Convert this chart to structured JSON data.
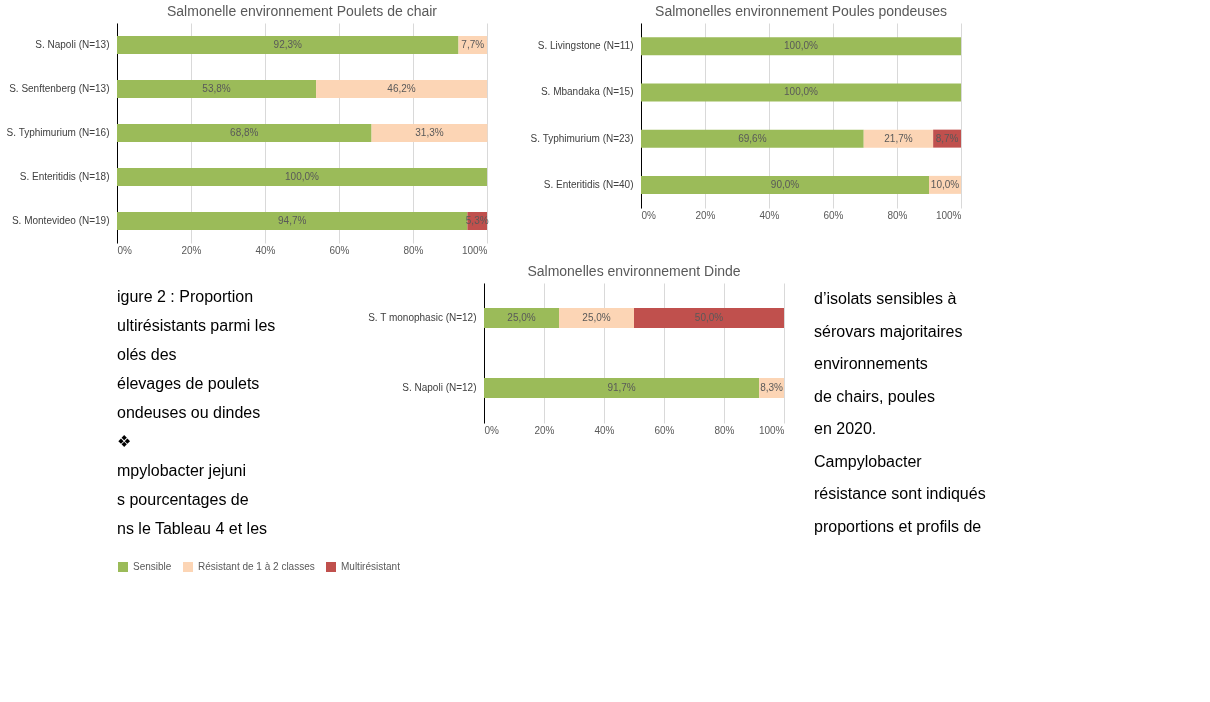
{
  "chart_data": [
    {
      "type": "bar",
      "orientation": "horizontal",
      "stacked": true,
      "title": "Salmonelle environnement Poulets de chair",
      "categories": [
        "S. Napoli (N=13)",
        "S. Senftenberg (N=13)",
        "S. Typhimurium (N=16)",
        "S. Enteritidis (N=18)",
        "S. Montevideo (N=19)"
      ],
      "series": [
        {
          "color": "#9bbb59",
          "values": [
            92.3,
            53.8,
            68.8,
            100.0,
            94.7
          ],
          "value_labels": [
            "92,3%",
            "53,8%",
            "68,8%",
            "100,0%",
            "94,7%"
          ]
        },
        {
          "color": "#fcd5b5",
          "values": [
            7.7,
            46.2,
            31.3,
            null,
            null
          ],
          "value_labels": [
            "7,7%",
            "46,2%",
            "31,3%",
            null,
            null
          ]
        },
        {
          "color": "#c0504d",
          "values": [
            null,
            null,
            null,
            null,
            5.3
          ],
          "value_labels": [
            null,
            null,
            null,
            null,
            "5,3%"
          ]
        }
      ],
      "xlim": [
        0,
        100
      ],
      "xticks": [
        {
          "value": 0,
          "label": "0%"
        },
        {
          "value": 20,
          "label": "20%"
        },
        {
          "value": 40,
          "label": "40%"
        },
        {
          "value": 60,
          "label": "60%"
        },
        {
          "value": 80,
          "label": "80%"
        },
        {
          "value": 100,
          "label": "100%"
        }
      ],
      "grid": "x",
      "legend": false,
      "annotations": [
        "igure 2 : Proportion",
        "ultirésistants parmi les",
        "olés                    des",
        "élevages de poulets",
        "ondeuses ou dindes",
        "❖",
        "mpylobacter jejuni",
        "s    pourcentages    de",
        "ns le Tableau 4 et les"
      ]
    },
    {
      "type": "bar",
      "orientation": "horizontal",
      "stacked": true,
      "title": "Salmonelles environnement Poules pondeuses",
      "categories": [
        "S. Livingstone (N=11)",
        "S. Mbandaka (N=15)",
        "S. Typhimurium (N=23)",
        "S. Enteritidis (N=40)"
      ],
      "series": [
        {
          "color": "#9bbb59",
          "values": [
            100.0,
            100.0,
            69.6,
            90.0
          ],
          "value_labels": [
            "100,0%",
            "100,0%",
            "69,6%",
            "90,0%"
          ]
        },
        {
          "color": "#fcd5b5",
          "values": [
            null,
            null,
            21.7,
            10.0
          ],
          "value_labels": [
            null,
            null,
            "21,7%",
            "10,0%"
          ]
        },
        {
          "color": "#c0504d",
          "values": [
            null,
            null,
            8.7,
            null
          ],
          "value_labels": [
            null,
            null,
            "8,7%",
            null
          ]
        }
      ],
      "xlim": [
        0,
        100
      ],
      "xticks": [
        {
          "value": 0,
          "label": "0%"
        },
        {
          "value": 20,
          "label": "20%"
        },
        {
          "value": 40,
          "label": "40%"
        },
        {
          "value": 60,
          "label": "60%"
        },
        {
          "value": 80,
          "label": "80%"
        },
        {
          "value": 100,
          "label": "100%"
        }
      ],
      "grid": "x",
      "legend": false,
      "annotations": [
        "d’isolats sensibles à",
        "sérovars majoritaires",
        "environnements",
        "de   chairs,   poules",
        "en 2020.",
        "Campylobacter",
        "résistance sont indiqués",
        "proportions et profils de"
      ]
    },
    {
      "type": "bar",
      "orientation": "horizontal",
      "stacked": true,
      "title": "Salmonelles environnement Dinde",
      "categories": [
        "S. T monophasic (N=12)",
        "S. Napoli (N=12)"
      ],
      "series": [
        {
          "name": "Sensible",
          "color": "#9bbb59",
          "values": [
            25.0,
            91.7
          ],
          "value_labels": [
            "25,0%",
            "91,7%"
          ]
        },
        {
          "name": "Résistant de 1 à 2 classes",
          "color": "#fcd5b5",
          "values": [
            25.0,
            8.3
          ],
          "value_labels": [
            "25,0%",
            "8,3%"
          ]
        },
        {
          "name": "Multirésistant",
          "color": "#c0504d",
          "values": [
            50.0,
            null
          ],
          "value_labels": [
            "50,0%",
            null
          ]
        }
      ],
      "xlim": [
        0,
        100
      ],
      "xticks": [
        {
          "value": 0,
          "label": "0%"
        },
        {
          "value": 20,
          "label": "20%"
        },
        {
          "value": 40,
          "label": "40%"
        },
        {
          "value": 60,
          "label": "60%"
        },
        {
          "value": 80,
          "label": "80%"
        },
        {
          "value": 100,
          "label": "100%"
        }
      ],
      "grid": "x",
      "legend": "bottom"
    }
  ]
}
